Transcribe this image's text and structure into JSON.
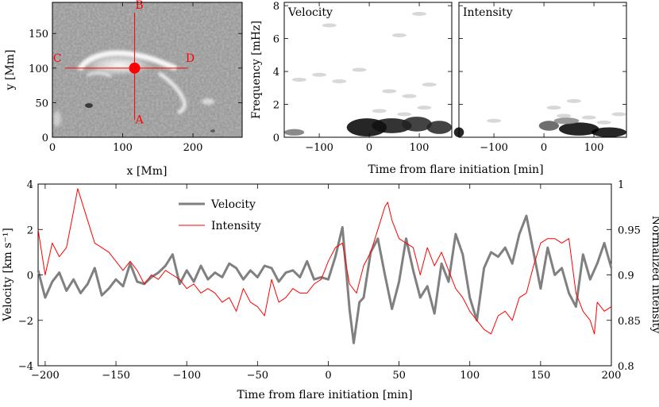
{
  "map_panel": {
    "xlabel": "x [Mm]",
    "ylabel": "y [Mm]",
    "xticks": [
      0,
      100,
      200
    ],
    "yticks": [
      0,
      50,
      100,
      150
    ],
    "xlim": [
      0,
      270
    ],
    "ylim": [
      0,
      195
    ],
    "point_labels": [
      "A",
      "B",
      "C",
      "D"
    ],
    "marker": {
      "x": 117,
      "y": 100
    },
    "marker_color": "#ff0000"
  },
  "spectrum_panels": {
    "ylabel": "Frequency [mHz]",
    "xlabel": "Time from flare initiation [min]",
    "yticks": [
      0,
      2,
      4,
      6,
      8
    ],
    "xticks": [
      -100,
      0,
      100
    ],
    "xlim": [
      -170,
      165
    ],
    "ylim": [
      0,
      8.2
    ],
    "panels": [
      {
        "label": "Velocity"
      },
      {
        "label": "Intensity"
      }
    ]
  },
  "chart_data": {
    "type": "line",
    "xlabel": "Time from flare initiation [min]",
    "ylabel_left": "Velocity [km s⁻¹]",
    "ylabel_right": "Normalized intensity",
    "xlim": [
      -205,
      200
    ],
    "ylim_left": [
      -4,
      4
    ],
    "ylim_right": [
      0.8,
      1.0
    ],
    "xticks": [
      -200,
      -150,
      -100,
      -50,
      0,
      50,
      100,
      150,
      200
    ],
    "yticks_left": [
      -4,
      -2,
      0,
      2,
      4
    ],
    "yticks_right": [
      0.8,
      0.85,
      0.9,
      0.95,
      1.0
    ],
    "legend_position": "top-center",
    "series": [
      {
        "name": "Velocity",
        "axis": "left",
        "color": "#808080",
        "x": [
          -205,
          -200,
          -195,
          -190,
          -185,
          -180,
          -175,
          -170,
          -165,
          -160,
          -155,
          -150,
          -145,
          -140,
          -135,
          -130,
          -125,
          -120,
          -115,
          -110,
          -105,
          -100,
          -95,
          -90,
          -85,
          -80,
          -75,
          -70,
          -65,
          -60,
          -55,
          -50,
          -45,
          -40,
          -35,
          -30,
          -25,
          -20,
          -15,
          -10,
          -5,
          0,
          5,
          10,
          15,
          18,
          22,
          25,
          30,
          35,
          40,
          45,
          50,
          55,
          60,
          65,
          70,
          75,
          80,
          85,
          90,
          95,
          100,
          105,
          110,
          115,
          120,
          125,
          130,
          135,
          140,
          145,
          150,
          155,
          160,
          165,
          170,
          175,
          180,
          185,
          190,
          195,
          200
        ],
        "values": [
          0.2,
          -1.0,
          -0.3,
          0.1,
          -0.7,
          -0.2,
          -0.8,
          -0.4,
          0.3,
          -0.9,
          -0.6,
          -0.2,
          -0.5,
          0.5,
          -0.3,
          -0.4,
          -0.1,
          0.1,
          0.4,
          0.9,
          -0.4,
          0.2,
          -0.3,
          0.4,
          -0.2,
          0.1,
          -0.1,
          0.5,
          0.3,
          -0.2,
          0.2,
          -0.1,
          0.4,
          0.3,
          -0.3,
          0.1,
          0.2,
          -0.1,
          0.6,
          -0.2,
          -0.1,
          -0.2,
          0.8,
          2.1,
          -1.5,
          -3.0,
          -1.2,
          -1.0,
          1.0,
          1.6,
          0.0,
          -1.5,
          -0.3,
          1.6,
          0.2,
          -1.0,
          -0.5,
          -1.7,
          0.5,
          -0.3,
          1.8,
          0.9,
          -1.0,
          -2.0,
          0.3,
          1.0,
          0.8,
          1.2,
          0.5,
          1.8,
          2.6,
          1.0,
          -0.6,
          1.2,
          0.0,
          0.3,
          -0.8,
          -1.4,
          0.9,
          -0.2,
          0.5,
          1.4,
          0.3
        ]
      },
      {
        "name": "Intensity",
        "axis": "right",
        "color": "#ff0000",
        "x": [
          -205,
          -200,
          -195,
          -190,
          -185,
          -180,
          -177,
          -175,
          -170,
          -165,
          -160,
          -155,
          -150,
          -145,
          -140,
          -135,
          -130,
          -125,
          -120,
          -115,
          -110,
          -105,
          -100,
          -95,
          -90,
          -85,
          -80,
          -75,
          -70,
          -65,
          -60,
          -55,
          -50,
          -45,
          -40,
          -35,
          -30,
          -25,
          -20,
          -15,
          -10,
          -5,
          0,
          5,
          10,
          15,
          20,
          25,
          30,
          35,
          40,
          42,
          45,
          50,
          55,
          60,
          65,
          70,
          75,
          80,
          85,
          90,
          95,
          100,
          105,
          110,
          115,
          120,
          125,
          130,
          135,
          140,
          145,
          150,
          155,
          160,
          165,
          170,
          175,
          180,
          185,
          188,
          190,
          195,
          200
        ],
        "values": [
          0.95,
          0.9,
          0.935,
          0.92,
          0.93,
          0.97,
          0.995,
          0.985,
          0.96,
          0.935,
          0.93,
          0.925,
          0.915,
          0.905,
          0.915,
          0.905,
          0.89,
          0.9,
          0.895,
          0.905,
          0.9,
          0.895,
          0.885,
          0.89,
          0.88,
          0.885,
          0.88,
          0.87,
          0.875,
          0.86,
          0.885,
          0.87,
          0.865,
          0.855,
          0.895,
          0.87,
          0.875,
          0.885,
          0.88,
          0.88,
          0.89,
          0.895,
          0.915,
          0.93,
          0.935,
          0.89,
          0.88,
          0.91,
          0.925,
          0.95,
          0.975,
          0.98,
          0.96,
          0.94,
          0.935,
          0.93,
          0.9,
          0.93,
          0.91,
          0.925,
          0.905,
          0.885,
          0.875,
          0.86,
          0.85,
          0.84,
          0.835,
          0.855,
          0.86,
          0.85,
          0.875,
          0.88,
          0.91,
          0.935,
          0.94,
          0.94,
          0.935,
          0.94,
          0.88,
          0.86,
          0.85,
          0.835,
          0.87,
          0.86,
          0.865
        ]
      }
    ]
  }
}
